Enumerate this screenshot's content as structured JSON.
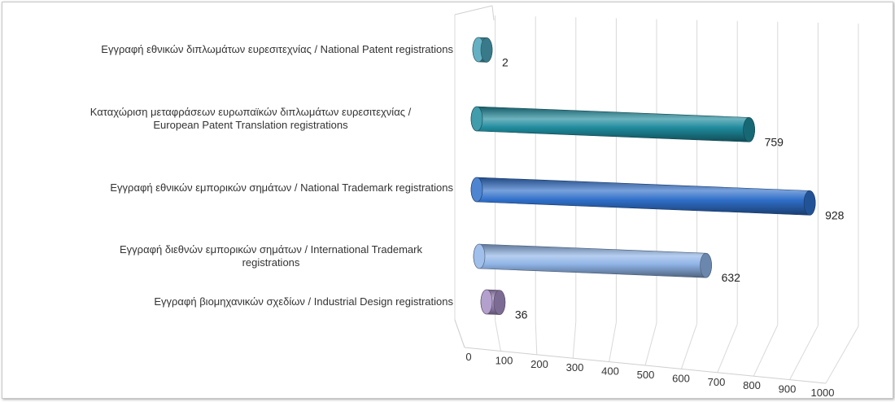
{
  "chart_data": {
    "type": "bar",
    "orientation": "horizontal",
    "style": "3d-cylinder",
    "categories": [
      "Εγγραφή  εθνικών διπλωμάτων ευρεσιτεχνίας / National Patent registrations",
      "Καταχώριση μεταφράσεων ευρωπαϊκών διπλωμάτων ευρεσιτεχνίας / European Patent Translation registrations",
      "Εγγραφή  εθνικών εμπορικών σημάτων / National Trademark registrations",
      "Εγγραφή  διεθνών εμπορικών σημάτων / International Trademark registrations",
      "Εγγραφή  βιομηχανικών σχεδίων / Industrial Design registrations"
    ],
    "category_lines": [
      [
        "Εγγραφή  εθνικών διπλωμάτων ευρεσιτεχνίας / National Patent registrations"
      ],
      [
        "Καταχώριση μεταφράσεων ευρωπαϊκών διπλωμάτων ευρεσιτεχνίας /",
        "European Patent Translation registrations"
      ],
      [
        "Εγγραφή  εθνικών εμπορικών σημάτων / National Trademark registrations"
      ],
      [
        "Εγγραφή  διεθνών εμπορικών σημάτων / International Trademark",
        "registrations"
      ],
      [
        "Εγγραφή  βιομηχανικών σχεδίων / Industrial Design registrations"
      ]
    ],
    "values": [
      2,
      759,
      928,
      632,
      36
    ],
    "data_labels": [
      "2",
      "759",
      "928",
      "632",
      "36"
    ],
    "colors": [
      "#4aa3b8",
      "#1f8a9c",
      "#2f6fc9",
      "#8fb4e6",
      "#a58fc4"
    ],
    "xlim": [
      0,
      1000
    ],
    "x_ticks": [
      "0",
      "100",
      "200",
      "300",
      "400",
      "500",
      "600",
      "700",
      "800",
      "900",
      "1000"
    ],
    "grid": true,
    "title": "",
    "xlabel": "",
    "ylabel": ""
  }
}
